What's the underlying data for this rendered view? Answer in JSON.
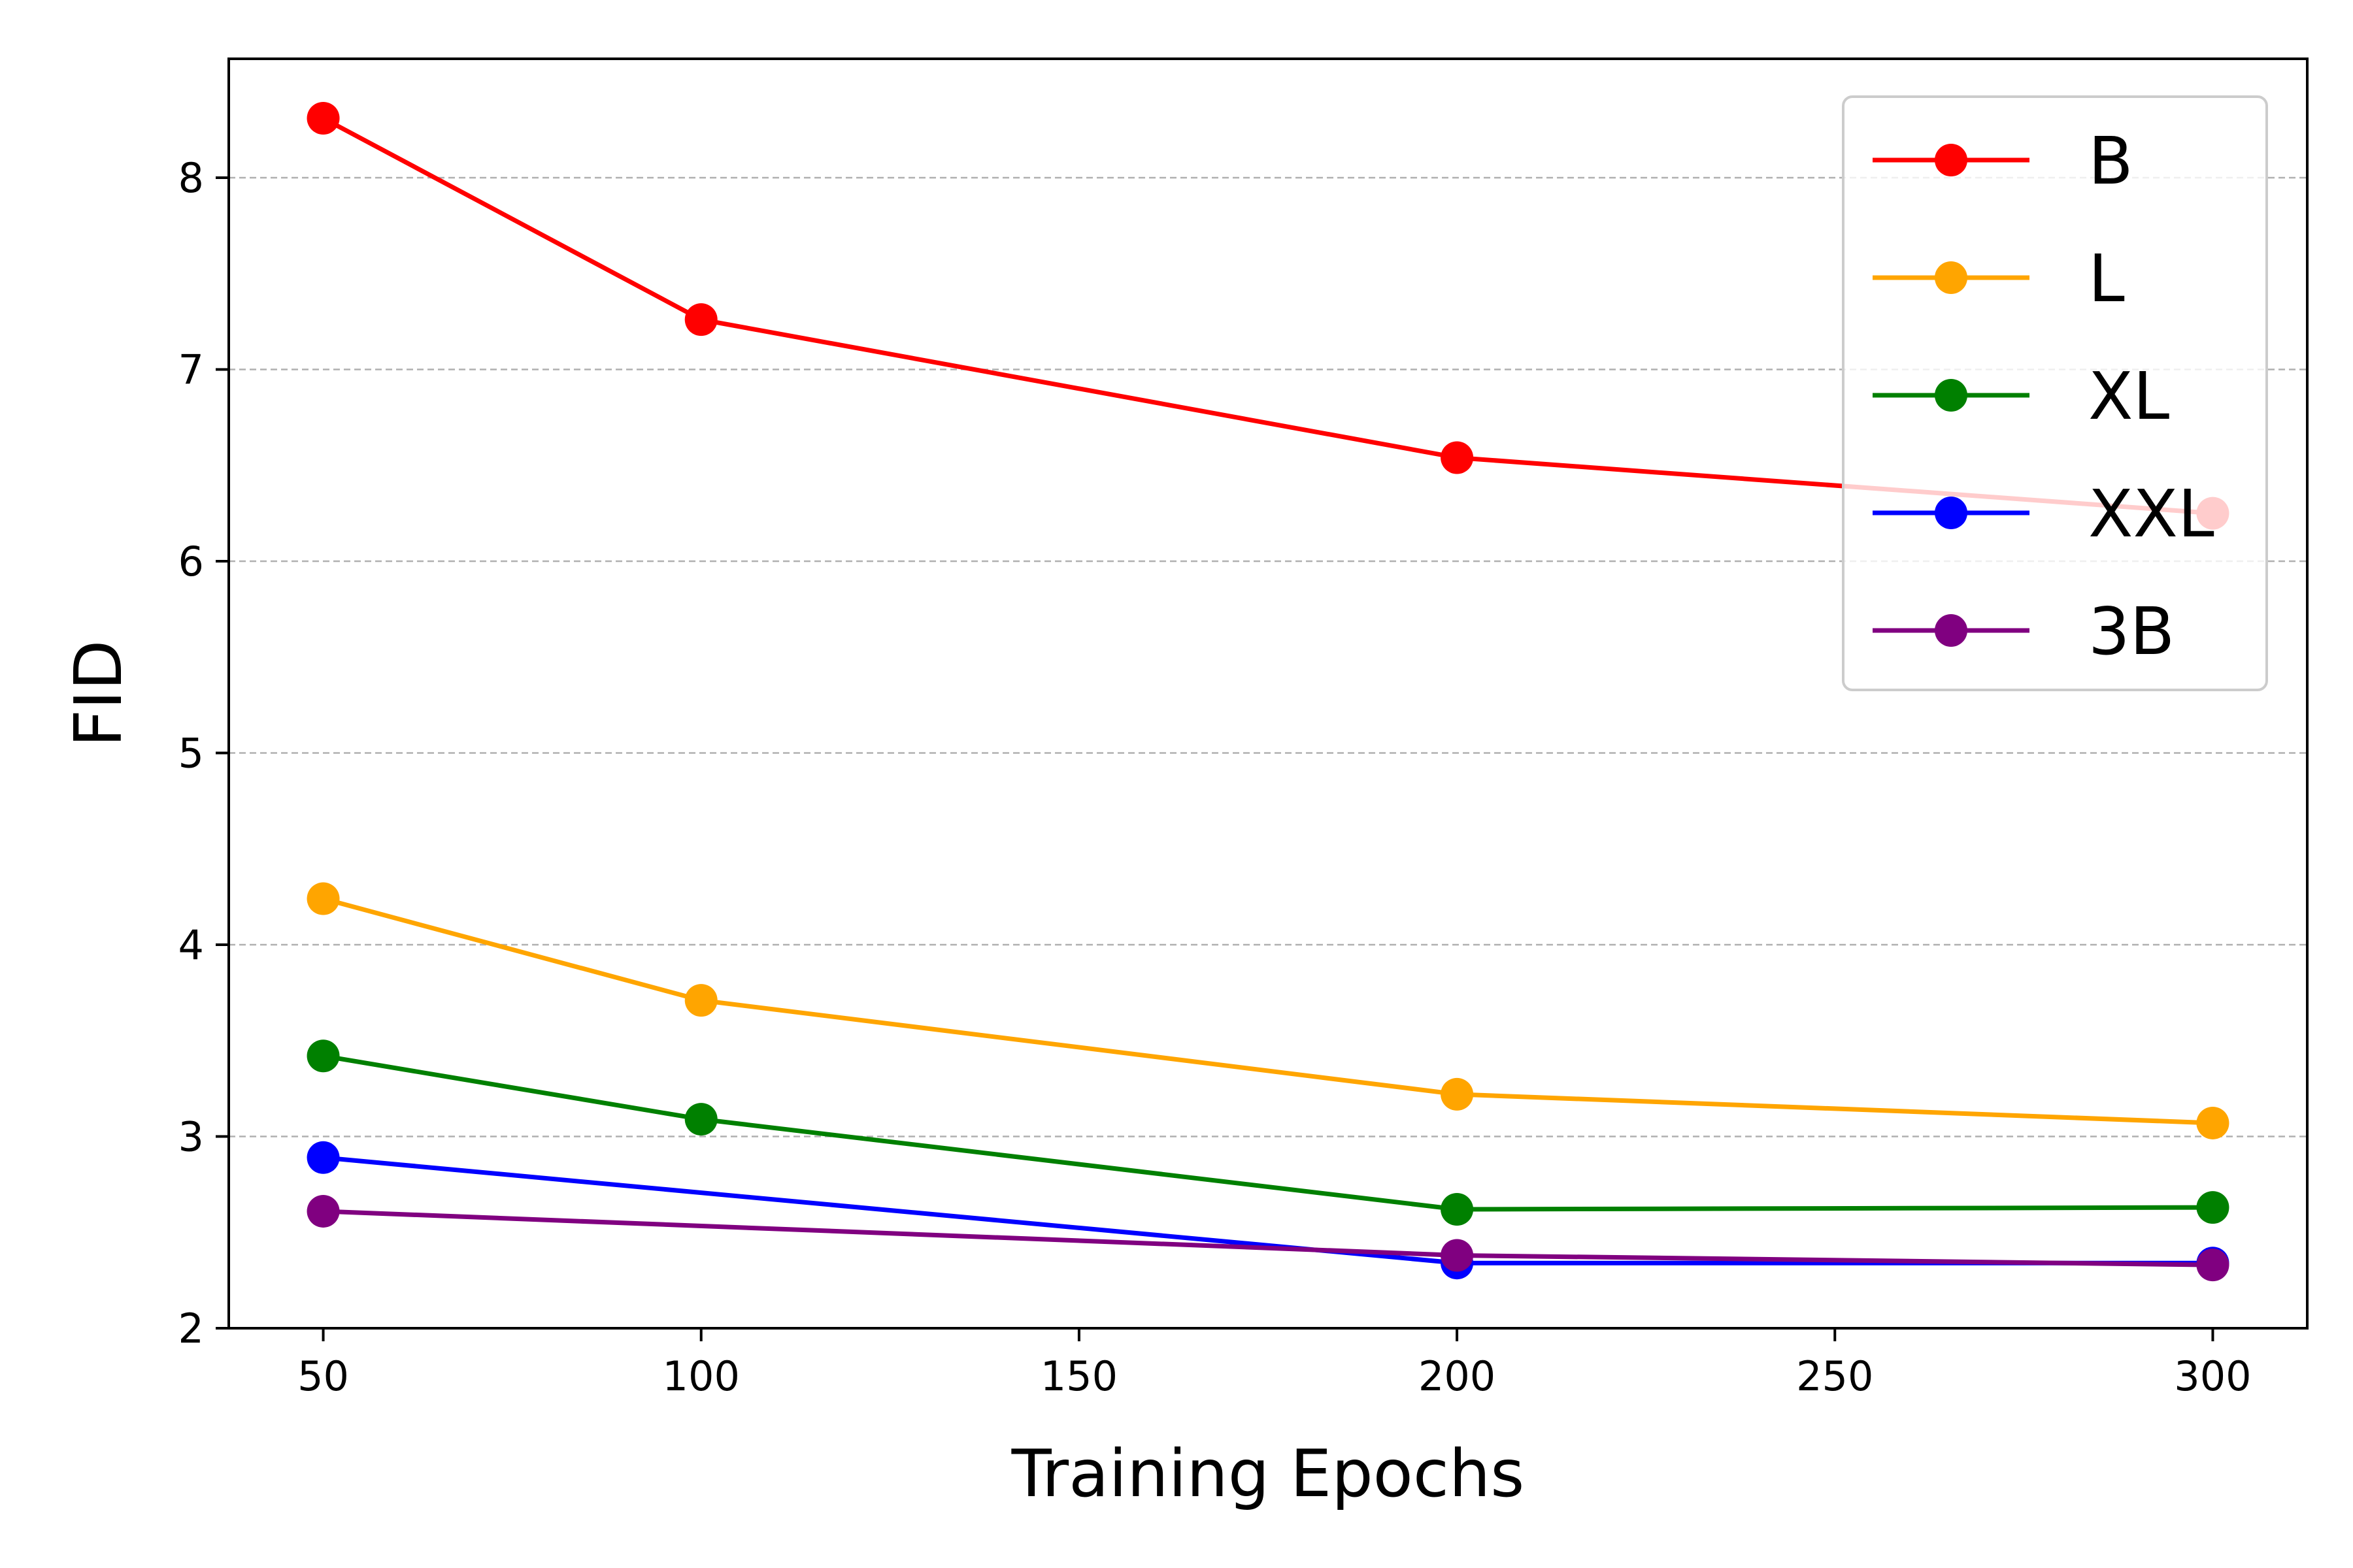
{
  "chart_data": {
    "type": "line",
    "title": "",
    "xlabel": "Training Epochs",
    "ylabel": "FID",
    "xlim": [
      37.5,
      312.5
    ],
    "ylim": [
      2,
      8.62
    ],
    "x_ticks": [
      50,
      100,
      150,
      200,
      250,
      300
    ],
    "y_ticks": [
      2,
      3,
      4,
      5,
      6,
      7,
      8
    ],
    "grid": "horizontal-dashed",
    "legend": "top-right",
    "x": [
      50,
      100,
      200,
      300
    ],
    "series": [
      {
        "name": "B",
        "color": "#ff0000",
        "values": [
          8.31,
          7.26,
          6.54,
          6.25
        ]
      },
      {
        "name": "L",
        "color": "#ffa500",
        "values": [
          4.24,
          3.71,
          3.22,
          3.07
        ]
      },
      {
        "name": "XL",
        "color": "#008000",
        "values": [
          3.42,
          3.09,
          2.62,
          2.63
        ]
      },
      {
        "name": "XXL",
        "color": "#0000ff",
        "values": [
          2.89,
          null,
          2.34,
          2.34
        ]
      },
      {
        "name": "3B",
        "color": "#800080",
        "values": [
          2.61,
          null,
          2.38,
          2.33
        ]
      }
    ]
  }
}
